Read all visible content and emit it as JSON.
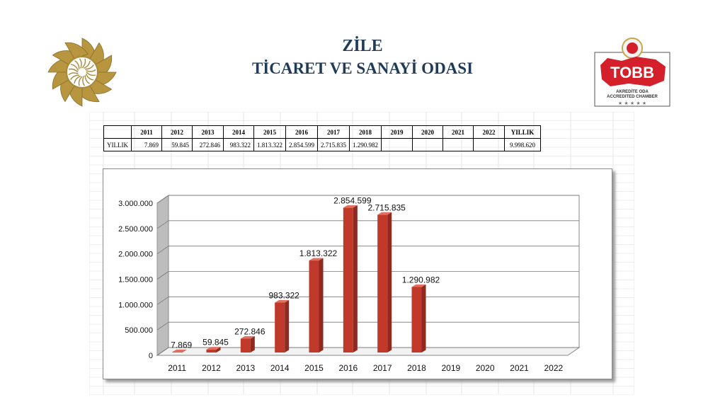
{
  "header": {
    "line1": "ZİLE",
    "line2": "TİCARET VE SANAYİ ODASI"
  },
  "logo_right": {
    "text": "TOBB",
    "subtitle1": "AKREDİTE ODA",
    "subtitle2": "ACCREDITED CHAMBER",
    "color": "#d4202a"
  },
  "table": {
    "columns": [
      "",
      "2011",
      "2012",
      "2013",
      "2014",
      "2015",
      "2016",
      "2017",
      "2018",
      "2019",
      "2020",
      "2021",
      "2022",
      "YILLIK"
    ],
    "row_label": "YILLIK",
    "values": [
      "7.869",
      "59.845",
      "272.846",
      "983.322",
      "1.813.322",
      "2.854.599",
      "2.715.835",
      "1.290.982",
      "",
      "",
      "",
      "",
      "9.998.620"
    ]
  },
  "chart_data": {
    "type": "bar",
    "categories": [
      "2011",
      "2012",
      "2013",
      "2014",
      "2015",
      "2016",
      "2017",
      "2018",
      "2019",
      "2020",
      "2021",
      "2022"
    ],
    "values": [
      7869,
      59845,
      272846,
      983322,
      1813322,
      2854599,
      2715835,
      1290982,
      null,
      null,
      null,
      null
    ],
    "data_labels": [
      "7.869",
      "59.845",
      "272.846",
      "983.322",
      "1.813.322",
      "2.854.599",
      "2.715.835",
      "1.290.982",
      "",
      "",
      "",
      ""
    ],
    "y_ticks": [
      0,
      500000,
      1000000,
      1500000,
      2000000,
      2500000,
      3000000
    ],
    "y_tick_labels": [
      "0",
      "500.000",
      "1.000.000",
      "1.500.000",
      "2.000.000",
      "2.500.000",
      "3.000.000"
    ],
    "ylim": [
      0,
      3000000
    ],
    "grid": true,
    "bar_color": "#c0392b",
    "title": "",
    "xlabel": "",
    "ylabel": ""
  }
}
